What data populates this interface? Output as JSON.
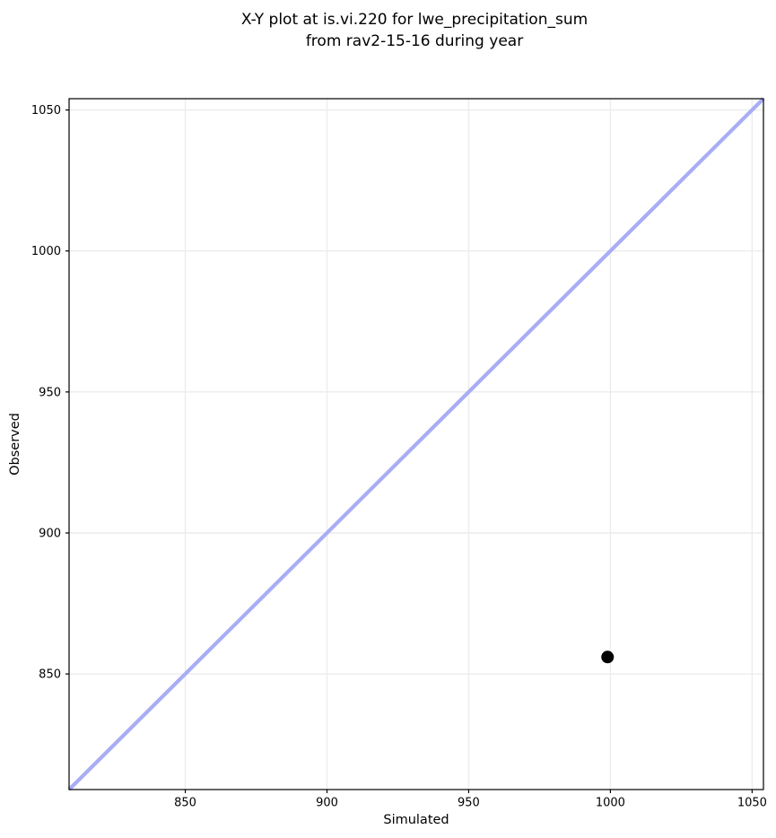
{
  "figure": {
    "background_color": "#ffffff"
  },
  "chart_data": {
    "type": "scatter",
    "title": "X-Y plot at is.vi.220 for lwe_precipitation_sum\nfrom rav2-15-16 during year",
    "title_lines": [
      "X-Y plot at is.vi.220 for lwe_precipitation_sum",
      "from rav2-15-16 during year"
    ],
    "xlabel": "Simulated",
    "ylabel": "Observed",
    "xlim": [
      809,
      1054
    ],
    "ylim": [
      809,
      1054
    ],
    "xticks": [
      850,
      900,
      950,
      1000,
      1050
    ],
    "yticks": [
      850,
      900,
      950,
      1000,
      1050
    ],
    "grid": true,
    "grid_color": "#ececec",
    "axis_color": "#000000",
    "identity_line": {
      "x": [
        809,
        1054
      ],
      "y": [
        809,
        1054
      ],
      "color": "#a8adf5",
      "width": 4.2
    },
    "points": [
      {
        "x": 999,
        "y": 856
      }
    ],
    "point_color": "#000000",
    "point_radius": 7,
    "legend": null
  }
}
